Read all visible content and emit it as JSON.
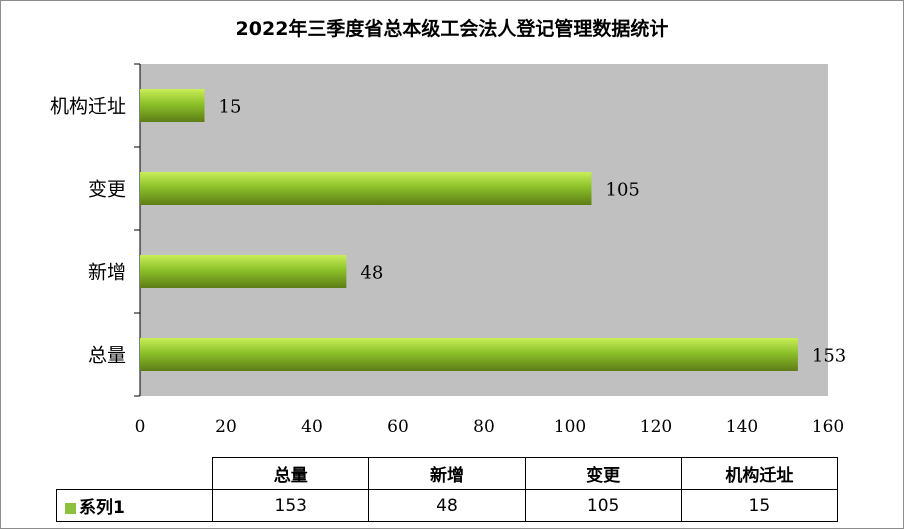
{
  "chart_data": {
    "type": "bar",
    "orientation": "horizontal",
    "title": "2022年三季度省总本级工会法人登记管理数据统计",
    "categories": [
      "总量",
      "新增",
      "变更",
      "机构迁址"
    ],
    "series": [
      {
        "name": "系列1",
        "values": [
          153,
          48,
          105,
          15
        ]
      }
    ],
    "xlim": [
      0,
      160
    ],
    "xticks": [
      "0",
      "20",
      "40",
      "60",
      "80",
      "100",
      "120",
      "140",
      "160"
    ],
    "grid": false,
    "legend": "data-table",
    "plot_background": "#c0c0c0",
    "bar_color": "#8cc13f"
  },
  "data_table": {
    "headers": [
      "总量",
      "新增",
      "变更",
      "机构迁址"
    ],
    "row_label": "系列1",
    "values": [
      "153",
      "48",
      "105",
      "15"
    ]
  }
}
